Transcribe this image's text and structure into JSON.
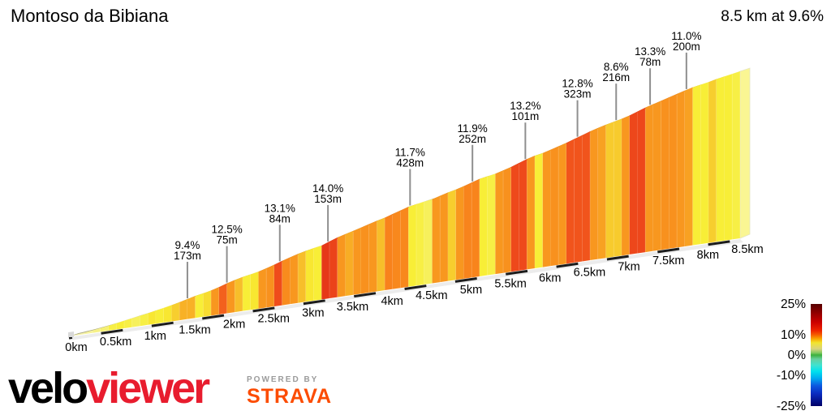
{
  "header": {
    "title": "Montoso da Bibiana",
    "summary": "8.5 km at 9.6%"
  },
  "chart_data": {
    "type": "area",
    "title": "Montoso da Bibiana",
    "subtitle": "8.5 km at 9.6%",
    "length_km": 8.5,
    "avg_gradient_label": "9.6%",
    "xlabel": "",
    "ylabel": "",
    "x_ticks": [
      {
        "km": 0.0,
        "label": "0km"
      },
      {
        "km": 0.5,
        "label": "0.5km"
      },
      {
        "km": 1.0,
        "label": "1km"
      },
      {
        "km": 1.5,
        "label": "1.5km"
      },
      {
        "km": 2.0,
        "label": "2km"
      },
      {
        "km": 2.5,
        "label": "2.5km"
      },
      {
        "km": 3.0,
        "label": "3km"
      },
      {
        "km": 3.5,
        "label": "3.5km"
      },
      {
        "km": 4.0,
        "label": "4km"
      },
      {
        "km": 4.5,
        "label": "4.5km"
      },
      {
        "km": 5.0,
        "label": "5km"
      },
      {
        "km": 5.5,
        "label": "5.5km"
      },
      {
        "km": 6.0,
        "label": "6km"
      },
      {
        "km": 6.5,
        "label": "6.5km"
      },
      {
        "km": 7.0,
        "label": "7km"
      },
      {
        "km": 7.5,
        "label": "7.5km"
      },
      {
        "km": 8.0,
        "label": "8km"
      },
      {
        "km": 8.5,
        "label": "8.5km"
      }
    ],
    "callouts": [
      {
        "km": 1.5,
        "gradient": "9.4%",
        "length": "173m"
      },
      {
        "km": 2.0,
        "gradient": "12.5%",
        "length": "75m"
      },
      {
        "km": 2.67,
        "gradient": "13.1%",
        "length": "84m"
      },
      {
        "km": 3.28,
        "gradient": "14.0%",
        "length": "153m"
      },
      {
        "km": 4.32,
        "gradient": "11.7%",
        "length": "428m"
      },
      {
        "km": 5.11,
        "gradient": "11.9%",
        "length": "252m"
      },
      {
        "km": 5.78,
        "gradient": "13.2%",
        "length": "101m"
      },
      {
        "km": 6.44,
        "gradient": "12.8%",
        "length": "323m"
      },
      {
        "km": 6.93,
        "gradient": "8.6%",
        "length": "216m"
      },
      {
        "km": 7.36,
        "gradient": "13.3%",
        "length": "78m"
      },
      {
        "km": 7.82,
        "gradient": "11.0%",
        "length": "200m"
      }
    ],
    "segments_100m": [
      3.5,
      4,
      4.5,
      5,
      5.5,
      6.5,
      7,
      6.5,
      6,
      6.5,
      7.5,
      7,
      7.5,
      8.5,
      9.4,
      9.4,
      7,
      8,
      10.5,
      12.5,
      10.5,
      9,
      7,
      7.5,
      10.5,
      11,
      13.1,
      11.5,
      10.5,
      9,
      7.5,
      7,
      14,
      13.5,
      10.5,
      9.5,
      10.5,
      11,
      10.5,
      9,
      12,
      11.7,
      11.7,
      7,
      6.5,
      6,
      10.5,
      10.5,
      8.5,
      10.5,
      11.9,
      11.9,
      7,
      6.5,
      10.5,
      11,
      13.2,
      13.2,
      10.5,
      7,
      10.5,
      11,
      10.5,
      12.8,
      12.8,
      12.8,
      10.5,
      10,
      8.6,
      8.6,
      10.5,
      13.3,
      13.3,
      10.5,
      10.5,
      11,
      11,
      10.5,
      10,
      7,
      7,
      8.5,
      7,
      7,
      6.5
    ],
    "gradient_color_stops": [
      [
        3,
        "#f8f5c0"
      ],
      [
        4.5,
        "#f6f29a"
      ],
      [
        5.5,
        "#f5f073"
      ],
      [
        6.5,
        "#f7ef45"
      ],
      [
        7.2,
        "#f8ed32"
      ],
      [
        8,
        "#f7dc30"
      ],
      [
        8.8,
        "#f7c52c"
      ],
      [
        9.6,
        "#f8aa24"
      ],
      [
        10.4,
        "#f8981f"
      ],
      [
        11.4,
        "#f88d1d"
      ],
      [
        12,
        "#f8821c"
      ],
      [
        12.6,
        "#f25a1d"
      ],
      [
        13.2,
        "#ee491b"
      ],
      [
        14,
        "#e63818"
      ],
      [
        16,
        "#de2c15"
      ]
    ],
    "legend": {
      "max": 25,
      "min": -25,
      "ticks": [
        {
          "label": "25%",
          "value": 25
        },
        {
          "label": "10%",
          "value": 10
        },
        {
          "label": "0%",
          "value": 0
        },
        {
          "label": "-10%",
          "value": -10
        },
        {
          "label": "-25%",
          "value": -25
        }
      ],
      "color_stops": [
        [
          0,
          "#560000"
        ],
        [
          0.08,
          "#8b0000"
        ],
        [
          0.18,
          "#cc0000"
        ],
        [
          0.26,
          "#ee2400"
        ],
        [
          0.3,
          "#f55a00"
        ],
        [
          0.34,
          "#f9a300"
        ],
        [
          0.38,
          "#f2e52e"
        ],
        [
          0.44,
          "#d9d37e"
        ],
        [
          0.48,
          "#7ec85e"
        ],
        [
          0.5,
          "#3cb03c"
        ],
        [
          0.54,
          "#66cf9e"
        ],
        [
          0.6,
          "#3fe3d0"
        ],
        [
          0.66,
          "#00e1ee"
        ],
        [
          0.73,
          "#00a9ef"
        ],
        [
          0.8,
          "#0b59e0"
        ],
        [
          0.88,
          "#0a2bbf"
        ],
        [
          1,
          "#000066"
        ]
      ]
    }
  },
  "footer": {
    "logo_black": "velo",
    "logo_red": "viewer",
    "powered_by": "POWERED BY",
    "strava": "STRAVA",
    "strava_color": "#fc4c02",
    "logo_red_color": "#e81c2e"
  }
}
